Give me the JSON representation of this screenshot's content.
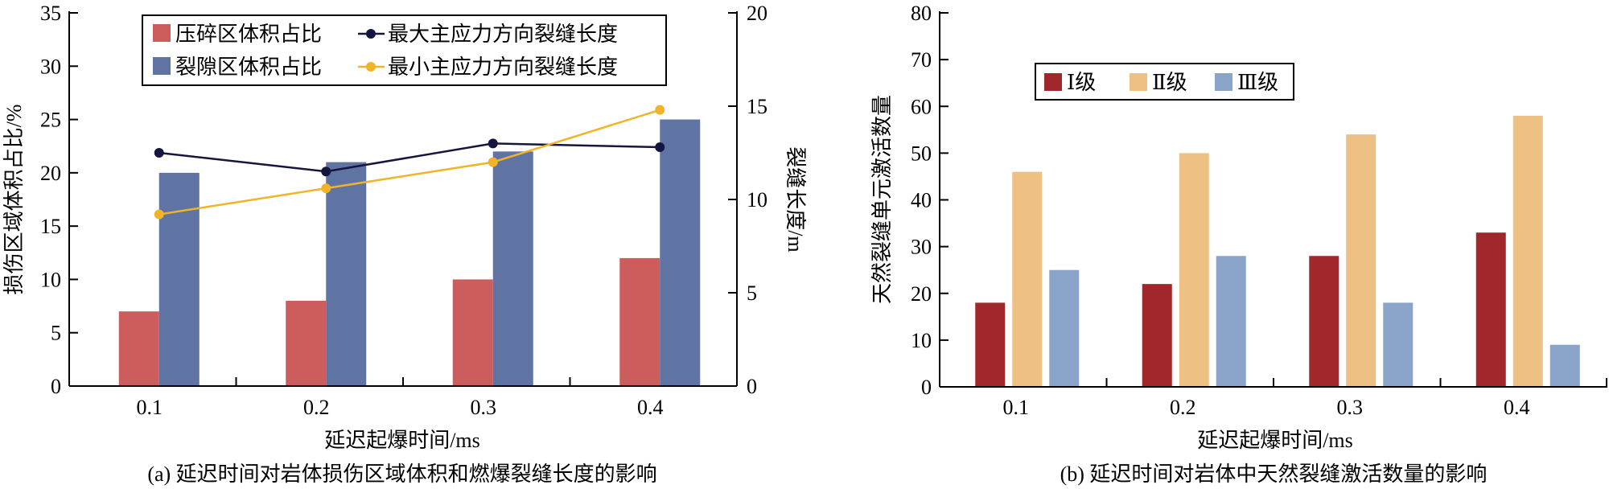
{
  "chart_data": [
    {
      "type": "bar+line",
      "title": "(a) 延迟时间对岩体损伤区域体积和燃爆裂缝长度的影响",
      "xlabel": "延迟起爆时间/ms",
      "ylabel": "损伤区域体积占比/%",
      "y2label": "裂缝长度/m",
      "categories": [
        "0.1",
        "0.2",
        "0.3",
        "0.4"
      ],
      "ylim": [
        0,
        35
      ],
      "yticks": [
        "0",
        "5",
        "10",
        "15",
        "20",
        "25",
        "30",
        "35"
      ],
      "y2lim": [
        0,
        20
      ],
      "y2ticks": [
        "0",
        "5",
        "10",
        "15",
        "20"
      ],
      "legend_position": "top",
      "bar_series": [
        {
          "name": "压碎区体积占比",
          "color": "#cd5c5c",
          "values": [
            7,
            8,
            10,
            12
          ]
        },
        {
          "name": "裂隙区体积占比",
          "color": "#6074a4",
          "values": [
            20,
            21,
            22,
            25
          ]
        }
      ],
      "line_series": [
        {
          "name": "最大主应力方向裂缝长度",
          "color": "#14163f",
          "axis": "right",
          "values": [
            12.5,
            11.5,
            13.0,
            12.8
          ]
        },
        {
          "name": "最小主应力方向裂缝长度",
          "color": "#f0b429",
          "axis": "right",
          "values": [
            9.2,
            10.6,
            12.0,
            14.8
          ]
        }
      ]
    },
    {
      "type": "bar",
      "title": "(b) 延迟时间对岩体中天然裂缝激活数量的影响",
      "xlabel": "延迟起爆时间/ms",
      "ylabel": "天然裂缝单元激活数量",
      "categories": [
        "0.1",
        "0.2",
        "0.3",
        "0.4"
      ],
      "ylim": [
        0,
        80
      ],
      "yticks": [
        "0",
        "10",
        "20",
        "30",
        "40",
        "50",
        "60",
        "70",
        "80"
      ],
      "legend_position": "upper-left",
      "series": [
        {
          "name": "Ⅰ级",
          "color": "#a0282d",
          "values": [
            18,
            22,
            28,
            33
          ]
        },
        {
          "name": "Ⅱ级",
          "color": "#edc184",
          "values": [
            46,
            50,
            54,
            58
          ]
        },
        {
          "name": "Ⅲ级",
          "color": "#8aa3c8",
          "values": [
            25,
            28,
            18,
            9
          ]
        }
      ]
    }
  ]
}
